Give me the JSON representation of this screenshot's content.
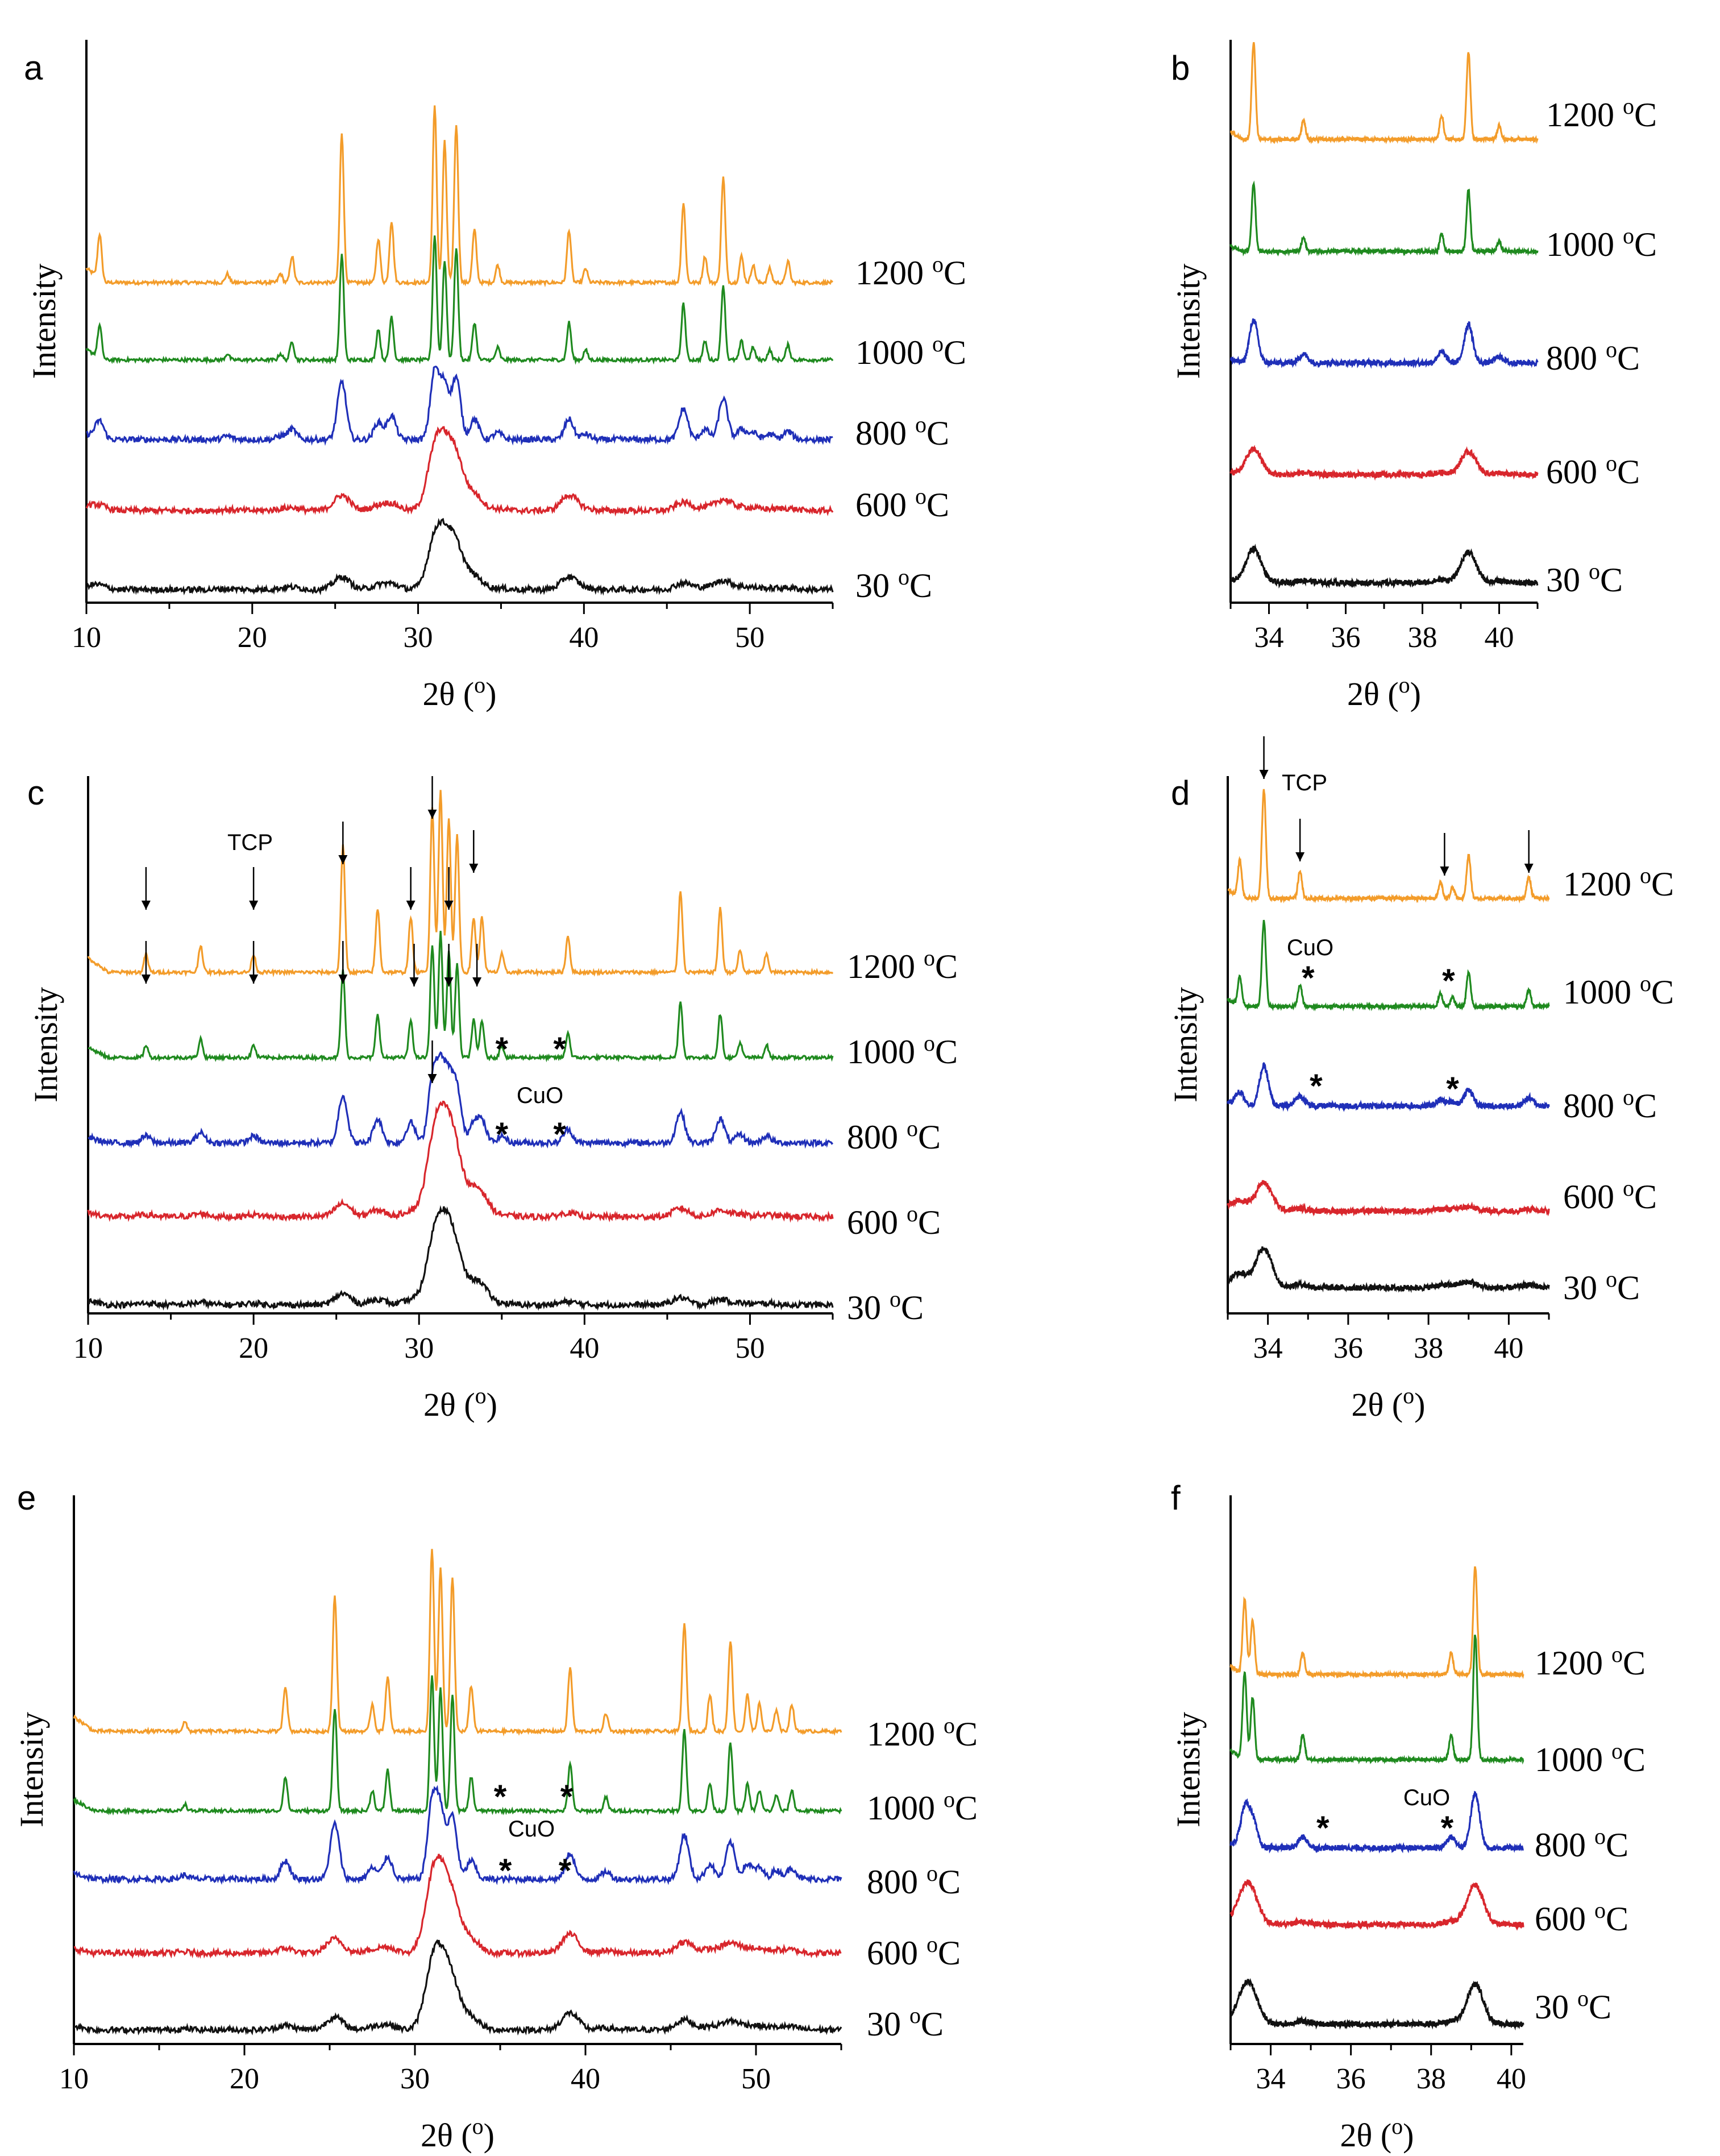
{
  "figure": {
    "description_none": ""
  },
  "colors": {
    "1200 °C": "#F39C2A",
    "1000 °C": "#1F8A1F",
    "800 °C": "#1F2FB8",
    "600 °C": "#D8262C",
    "30 °C": "#111111"
  },
  "chart_data": [
    {
      "panel": "a",
      "type": "line",
      "xlabel": "2θ (°)",
      "ylabel": "Intensity",
      "xlim": [
        10,
        55
      ],
      "xticks": [
        "10",
        "20",
        "30",
        "40",
        "50"
      ],
      "series": [
        {
          "name": "1200 °C",
          "label": "1200 °C"
        },
        {
          "name": "1000 °C",
          "label": "1000 °C"
        },
        {
          "name": "800 °C",
          "label": "800 °C"
        },
        {
          "name": "600 °C",
          "label": "600 °C"
        },
        {
          "name": "30 °C",
          "label": "30 °C"
        }
      ],
      "peaks_2theta": [
        10.8,
        18.5,
        21.7,
        22.4,
        25.4,
        27.6,
        28.4,
        31.0,
        31.6,
        32.3,
        33.4,
        34.8,
        39.1,
        40.1,
        46.0,
        47.3,
        48.4,
        49.5,
        50.2,
        51.2,
        52.3
      ],
      "annotations": []
    },
    {
      "panel": "b",
      "type": "line",
      "xlabel": "2θ (°)",
      "ylabel": "Intensity",
      "xlim": [
        33,
        41
      ],
      "xticks": [
        "34",
        "36",
        "38",
        "40"
      ],
      "series": [
        {
          "name": "1200 °C",
          "label": "1200 °C"
        },
        {
          "name": "1000 °C",
          "label": "1000 °C"
        },
        {
          "name": "800 °C",
          "label": "800 °C"
        },
        {
          "name": "600 °C",
          "label": "600 °C"
        },
        {
          "name": "30 °C",
          "label": "30 °C"
        }
      ],
      "peaks_2theta": [
        33.6,
        34.9,
        38.5,
        39.2,
        40.0
      ],
      "annotations": []
    },
    {
      "panel": "c",
      "type": "line",
      "xlabel": "2θ (°)",
      "ylabel": "Intensity",
      "xlim": [
        10,
        55
      ],
      "xticks": [
        "10",
        "20",
        "30",
        "40",
        "50"
      ],
      "series": [
        {
          "name": "1200 °C",
          "label": "1200 °C"
        },
        {
          "name": "1000 °C",
          "label": "1000 °C"
        },
        {
          "name": "800 °C",
          "label": "800 °C"
        },
        {
          "name": "600 °C",
          "label": "600 °C"
        },
        {
          "name": "30 °C",
          "label": "30 °C"
        }
      ],
      "peaks_2theta": [
        13.5,
        16.8,
        20.0,
        25.4,
        27.5,
        29.5,
        30.8,
        31.3,
        31.8,
        32.3,
        33.3,
        33.8,
        35.0,
        39.0,
        45.8,
        48.2,
        49.4,
        51.0
      ],
      "annotations": [
        "TCP",
        "CuO",
        "*"
      ]
    },
    {
      "panel": "d",
      "type": "line",
      "xlabel": "2θ (°)",
      "ylabel": "Intensity",
      "xlim": [
        33,
        41
      ],
      "xticks": [
        "34",
        "36",
        "38",
        "40"
      ],
      "series": [
        {
          "name": "1200 °C",
          "label": "1200 °C"
        },
        {
          "name": "1000 °C",
          "label": "1000 °C"
        },
        {
          "name": "800 °C",
          "label": "800 °C"
        },
        {
          "name": "600 °C",
          "label": "600 °C"
        },
        {
          "name": "30 °C",
          "label": "30 °C"
        }
      ],
      "peaks_2theta": [
        33.3,
        33.9,
        34.8,
        38.3,
        38.6,
        39.0,
        40.5
      ],
      "annotations": [
        "TCP",
        "CuO",
        "*"
      ]
    },
    {
      "panel": "e",
      "type": "line",
      "xlabel": "2θ (°)",
      "ylabel": "Intensity",
      "xlim": [
        10,
        55
      ],
      "xticks": [
        "10",
        "20",
        "30",
        "40",
        "50"
      ],
      "series": [
        {
          "name": "1200 °C",
          "label": "1200 °C"
        },
        {
          "name": "1000 °C",
          "label": "1000 °C"
        },
        {
          "name": "800 °C",
          "label": "800 °C"
        },
        {
          "name": "600 °C",
          "label": "600 °C"
        },
        {
          "name": "30 °C",
          "label": "30 °C"
        }
      ],
      "peaks_2theta": [
        16.5,
        22.4,
        25.3,
        27.5,
        28.4,
        31.0,
        31.5,
        32.2,
        33.3,
        39.1,
        41.2,
        45.8,
        47.3,
        48.5,
        49.5,
        50.2,
        51.2,
        52.1
      ],
      "annotations": [
        "CuO",
        "*"
      ]
    },
    {
      "panel": "f",
      "type": "line",
      "xlabel": "2θ (°)",
      "ylabel": "Intensity",
      "xlim": [
        33,
        40.3
      ],
      "xticks": [
        "34",
        "36",
        "38",
        "40"
      ],
      "series": [
        {
          "name": "1200 °C",
          "label": "1200 °C"
        },
        {
          "name": "1000 °C",
          "label": "1000 °C"
        },
        {
          "name": "800 °C",
          "label": "800 °C"
        },
        {
          "name": "600 °C",
          "label": "600 °C"
        },
        {
          "name": "30 °C",
          "label": "30 °C"
        }
      ],
      "peaks_2theta": [
        33.35,
        33.55,
        34.8,
        38.5,
        39.1
      ],
      "annotations": [
        "CuO",
        "*"
      ]
    }
  ]
}
